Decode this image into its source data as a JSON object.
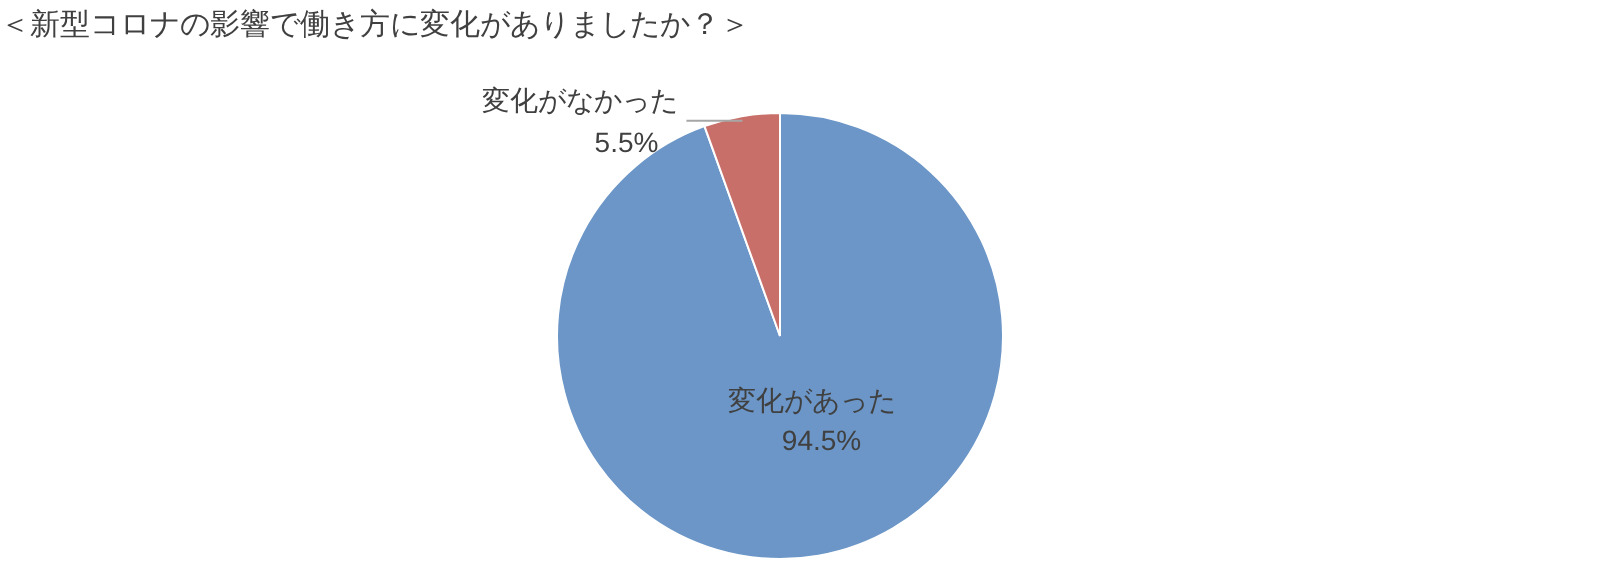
{
  "chart_data": {
    "type": "pie",
    "title": "＜新型コロナの影響で働き方に変化がありましたか？＞",
    "categories": [
      "変化があった",
      "変化がなかった"
    ],
    "values": [
      94.5,
      5.5
    ],
    "colors": [
      "#6b96c7",
      "#c96f69"
    ],
    "value_labels": [
      "94.5%",
      "5.5%"
    ],
    "legend": false
  }
}
